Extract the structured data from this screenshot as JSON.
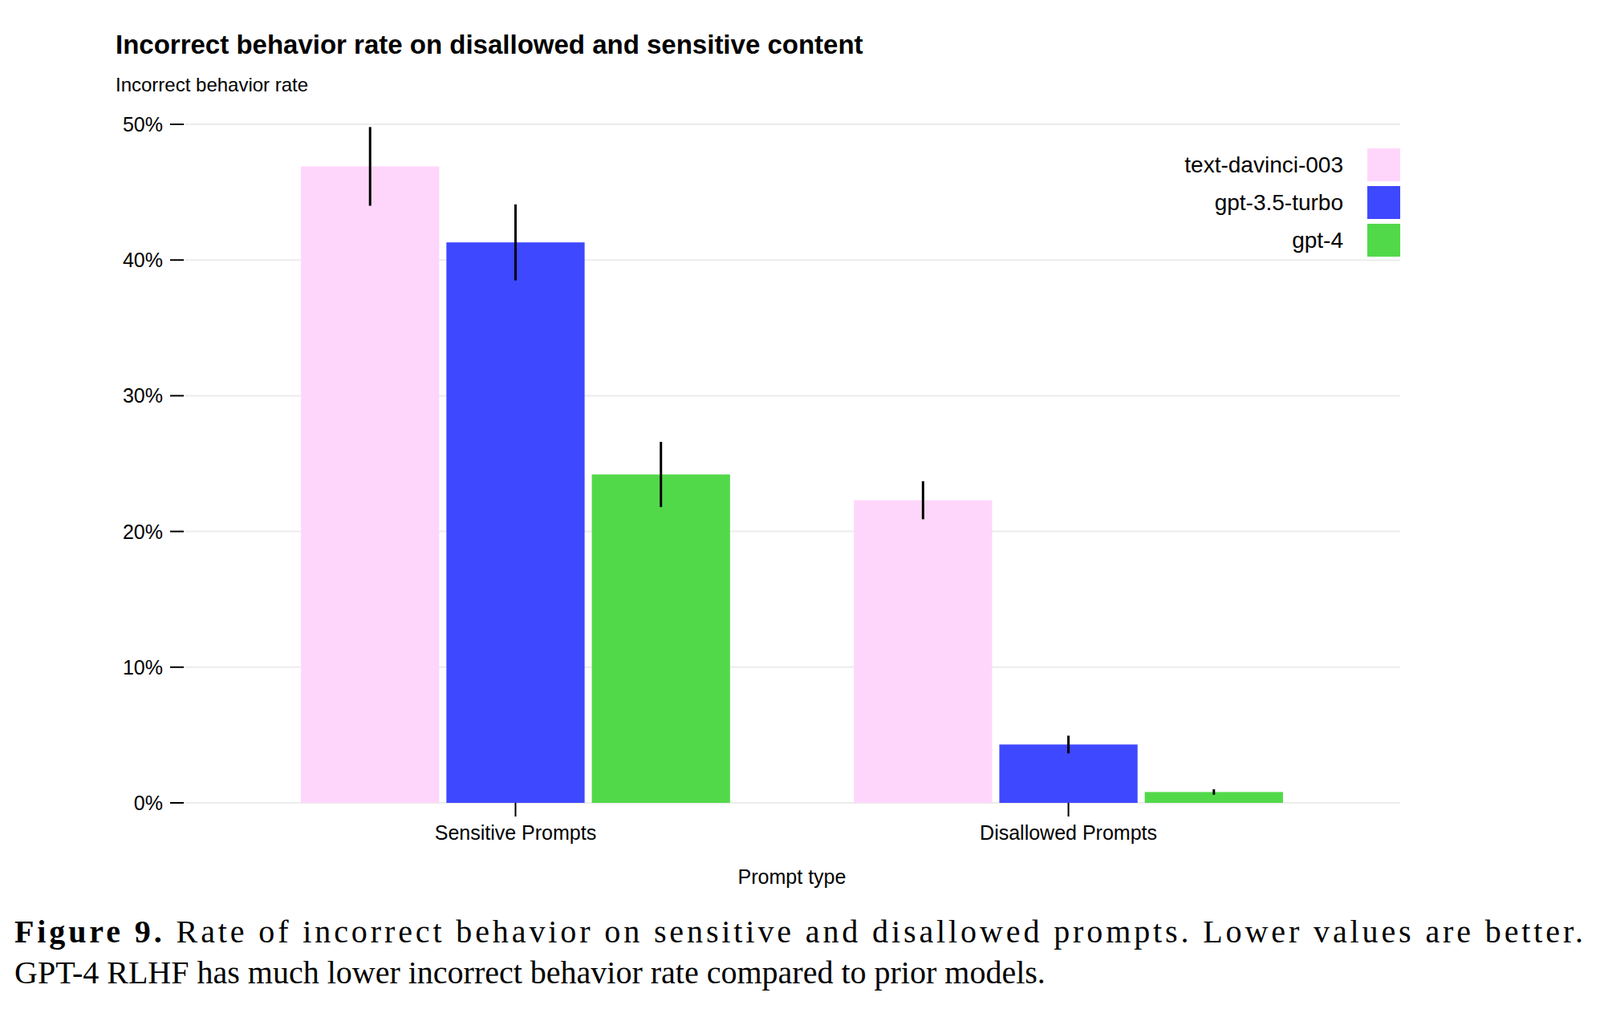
{
  "chart_data": {
    "type": "bar",
    "title": "Incorrect behavior rate on disallowed and sensitive content",
    "y_label": "Incorrect behavior rate",
    "x_label": "Prompt type",
    "categories": [
      "Sensitive Prompts",
      "Disallowed Prompts"
    ],
    "series": [
      {
        "name": "text-davinci-003",
        "color": "#ffd6fb",
        "values": [
          46.9,
          22.3
        ],
        "errors": [
          2.9,
          1.4
        ]
      },
      {
        "name": "gpt-3.5-turbo",
        "color": "#3e48ff",
        "values": [
          41.3,
          4.3
        ],
        "errors": [
          2.8,
          0.65
        ]
      },
      {
        "name": "gpt-4",
        "color": "#52d94a",
        "values": [
          24.2,
          0.8
        ],
        "errors": [
          2.4,
          0.2
        ]
      }
    ],
    "ylim": [
      0,
      50
    ],
    "yticks": [
      {
        "value": 0,
        "label": "0%"
      },
      {
        "value": 10,
        "label": "10%"
      },
      {
        "value": 20,
        "label": "20%"
      },
      {
        "value": 30,
        "label": "30%"
      },
      {
        "value": 40,
        "label": "40%"
      },
      {
        "value": 50,
        "label": "50%"
      }
    ],
    "grid": true,
    "legend": "top-right",
    "caption_label": "Figure 9.",
    "caption": [
      "Rate of incorrect behavior on sensitive and disallowed prompts. Lower values are better.",
      "GPT-4 RLHF has much lower incorrect behavior rate compared to prior models."
    ]
  }
}
